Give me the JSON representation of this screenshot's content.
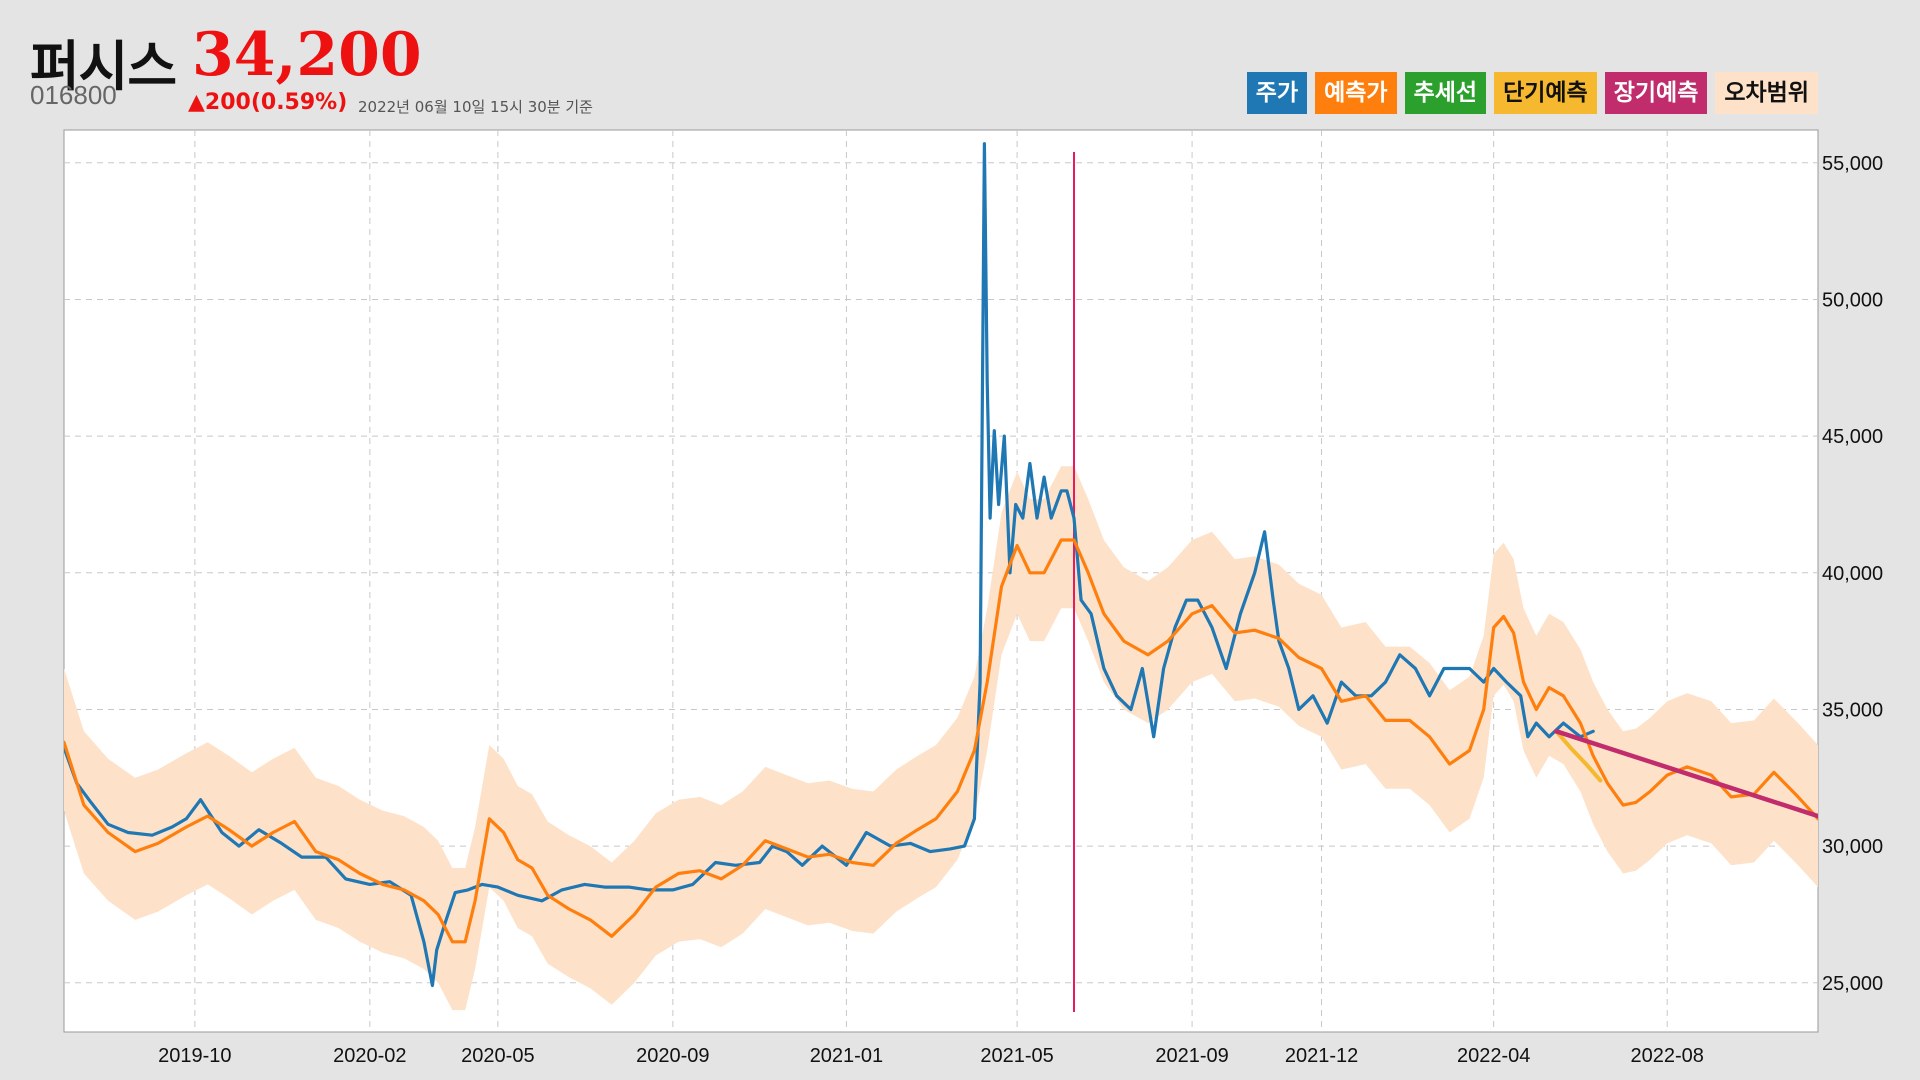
{
  "header": {
    "name": "퍼시스",
    "price": "34,200",
    "code": "016800",
    "change": "▲200(0.59%)",
    "time": "2022년 06월 10일 15시 30분 기준"
  },
  "legend": [
    {
      "label": "주가",
      "color": "#1f77b4",
      "text_color": "#ffffff"
    },
    {
      "label": "예측가",
      "color": "#ff7f0e",
      "text_color": "#ffffff"
    },
    {
      "label": "추세선",
      "color": "#2ca02c",
      "text_color": "#ffffff"
    },
    {
      "label": "단기예측",
      "color": "#f5b82e",
      "text_color": "#111111"
    },
    {
      "label": "장기예측",
      "color": "#c02c6c",
      "text_color": "#ffffff"
    },
    {
      "label": "오차범위",
      "color": "#fde2c9",
      "text_color": "#111111"
    }
  ],
  "chart_data": {
    "type": "line",
    "x_type": "date",
    "xlim": [
      "2019-07-01",
      "2022-11-15"
    ],
    "ylim": [
      23200,
      56200
    ],
    "y_ticks": [
      25000,
      30000,
      35000,
      40000,
      45000,
      50000,
      55000
    ],
    "y_tick_labels": [
      "25,000",
      "30,000",
      "35,000",
      "40,000",
      "45,000",
      "50,000",
      "55,000"
    ],
    "x_ticks": [
      "2019-10-01",
      "2020-02-01",
      "2020-05-01",
      "2020-09-01",
      "2021-01-01",
      "2021-05-01",
      "2021-09-01",
      "2021-12-01",
      "2022-04-01",
      "2022-08-01"
    ],
    "x_tick_labels": [
      "2019-10",
      "2020-02",
      "2020-05",
      "2020-09",
      "2021-01",
      "2021-05",
      "2021-09",
      "2021-12",
      "2022-04",
      "2022-08"
    ],
    "grid": true,
    "y_axis_side": "right",
    "marker_date": "2021-06-10",
    "series": [
      {
        "name": "주가",
        "color": "#1f77b4",
        "x": [
          "2019-07-01",
          "2019-07-10",
          "2019-07-20",
          "2019-08-01",
          "2019-08-15",
          "2019-09-01",
          "2019-09-15",
          "2019-09-25",
          "2019-10-05",
          "2019-10-20",
          "2019-11-01",
          "2019-11-15",
          "2019-12-01",
          "2019-12-15",
          "2020-01-01",
          "2020-01-15",
          "2020-02-01",
          "2020-02-15",
          "2020-03-01",
          "2020-03-10",
          "2020-03-16",
          "2020-03-19",
          "2020-03-25",
          "2020-04-01",
          "2020-04-10",
          "2020-04-20",
          "2020-05-01",
          "2020-05-15",
          "2020-06-01",
          "2020-06-15",
          "2020-07-01",
          "2020-07-15",
          "2020-08-01",
          "2020-08-15",
          "2020-09-01",
          "2020-09-15",
          "2020-10-01",
          "2020-10-15",
          "2020-11-01",
          "2020-11-10",
          "2020-11-20",
          "2020-12-01",
          "2020-12-15",
          "2021-01-01",
          "2021-01-15",
          "2021-02-01",
          "2021-02-15",
          "2021-03-01",
          "2021-03-15",
          "2021-03-25",
          "2021-04-01",
          "2021-04-05",
          "2021-04-08",
          "2021-04-10",
          "2021-04-12",
          "2021-04-15",
          "2021-04-18",
          "2021-04-22",
          "2021-04-26",
          "2021-04-30",
          "2021-05-05",
          "2021-05-10",
          "2021-05-15",
          "2021-05-20",
          "2021-05-25",
          "2021-06-01",
          "2021-06-05",
          "2021-06-10",
          "2021-06-15",
          "2021-06-22",
          "2021-07-01",
          "2021-07-10",
          "2021-07-20",
          "2021-07-28",
          "2021-08-05",
          "2021-08-12",
          "2021-08-20",
          "2021-08-28",
          "2021-09-05",
          "2021-09-15",
          "2021-09-25",
          "2021-10-05",
          "2021-10-15",
          "2021-10-22",
          "2021-10-28",
          "2021-11-01",
          "2021-11-08",
          "2021-11-15",
          "2021-11-25",
          "2021-12-05",
          "2021-12-15",
          "2021-12-25",
          "2022-01-05",
          "2022-01-15",
          "2022-01-25",
          "2022-02-05",
          "2022-02-15",
          "2022-02-25",
          "2022-03-05",
          "2022-03-15",
          "2022-03-25",
          "2022-04-01",
          "2022-04-10",
          "2022-04-20",
          "2022-04-25",
          "2022-05-01",
          "2022-05-10",
          "2022-05-20",
          "2022-06-01",
          "2022-06-10"
        ],
        "y": [
          33600,
          32300,
          31600,
          30800,
          30500,
          30400,
          30700,
          31000,
          31700,
          30500,
          30000,
          30600,
          30100,
          29600,
          29600,
          28800,
          28600,
          28700,
          28200,
          26500,
          24900,
          26200,
          27200,
          28300,
          28400,
          28600,
          28500,
          28200,
          28000,
          28400,
          28600,
          28500,
          28500,
          28400,
          28400,
          28600,
          29400,
          29300,
          29400,
          30000,
          29800,
          29300,
          30000,
          29300,
          30500,
          30000,
          30100,
          29800,
          29900,
          30000,
          31000,
          36000,
          55700,
          47000,
          42000,
          45200,
          42500,
          45000,
          40000,
          42500,
          42000,
          44000,
          42000,
          43500,
          42000,
          43000,
          43000,
          42000,
          39000,
          38500,
          36500,
          35500,
          35000,
          36500,
          34000,
          36500,
          38000,
          39000,
          39000,
          38000,
          36500,
          38500,
          40000,
          41500,
          39000,
          37500,
          36500,
          35000,
          35500,
          34500,
          36000,
          35500,
          35500,
          36000,
          37000,
          36500,
          35500,
          36500,
          36500,
          36500,
          36000,
          36500,
          36000,
          35500,
          34000,
          34500,
          34000,
          34500,
          34000,
          34200
        ]
      },
      {
        "name": "예측가",
        "color": "#ff7f0e",
        "x": [
          "2019-07-01",
          "2019-07-15",
          "2019-08-01",
          "2019-08-20",
          "2019-09-05",
          "2019-09-25",
          "2019-10-10",
          "2019-10-25",
          "2019-11-10",
          "2019-11-25",
          "2019-12-10",
          "2019-12-25",
          "2020-01-10",
          "2020-01-25",
          "2020-02-10",
          "2020-02-25",
          "2020-03-10",
          "2020-03-20",
          "2020-03-30",
          "2020-04-08",
          "2020-04-15",
          "2020-04-25",
          "2020-05-05",
          "2020-05-15",
          "2020-05-25",
          "2020-06-05",
          "2020-06-20",
          "2020-07-05",
          "2020-07-20",
          "2020-08-05",
          "2020-08-20",
          "2020-09-05",
          "2020-09-20",
          "2020-10-05",
          "2020-10-20",
          "2020-11-05",
          "2020-11-20",
          "2020-12-05",
          "2020-12-20",
          "2021-01-05",
          "2021-01-20",
          "2021-02-05",
          "2021-02-20",
          "2021-03-05",
          "2021-03-20",
          "2021-04-01",
          "2021-04-10",
          "2021-04-20",
          "2021-05-01",
          "2021-05-10",
          "2021-05-20",
          "2021-06-01",
          "2021-06-10",
          "2021-06-20",
          "2021-07-01",
          "2021-07-15",
          "2021-08-01",
          "2021-08-15",
          "2021-09-01",
          "2021-09-15",
          "2021-10-01",
          "2021-10-15",
          "2021-11-01",
          "2021-11-15",
          "2021-12-01",
          "2021-12-15",
          "2022-01-01",
          "2022-01-15",
          "2022-02-01",
          "2022-02-15",
          "2022-03-01",
          "2022-03-15",
          "2022-03-25",
          "2022-04-01",
          "2022-04-08",
          "2022-04-15",
          "2022-04-22",
          "2022-05-01",
          "2022-05-10",
          "2022-05-20",
          "2022-06-01",
          "2022-06-10",
          "2022-06-20",
          "2022-07-01",
          "2022-07-10",
          "2022-07-20",
          "2022-08-01",
          "2022-08-15",
          "2022-09-01",
          "2022-09-15",
          "2022-10-01",
          "2022-10-15",
          "2022-11-01",
          "2022-11-15"
        ],
        "y": [
          33800,
          31500,
          30500,
          29800,
          30100,
          30700,
          31100,
          30600,
          30000,
          30500,
          30900,
          29800,
          29500,
          29000,
          28600,
          28400,
          28000,
          27500,
          26500,
          26500,
          28000,
          31000,
          30500,
          29500,
          29200,
          28200,
          27700,
          27300,
          26700,
          27500,
          28500,
          29000,
          29100,
          28800,
          29300,
          30200,
          29900,
          29600,
          29700,
          29400,
          29300,
          30100,
          30600,
          31000,
          32000,
          33500,
          36000,
          39500,
          41000,
          40000,
          40000,
          41200,
          41200,
          40000,
          38500,
          37500,
          37000,
          37500,
          38500,
          38800,
          37800,
          37900,
          37600,
          36900,
          36500,
          35300,
          35500,
          34600,
          34600,
          34000,
          33000,
          33500,
          35000,
          38000,
          38400,
          37800,
          36000,
          35000,
          35800,
          35500,
          34500,
          33300,
          32300,
          31500,
          31600,
          32000,
          32600,
          32900,
          32600,
          31800,
          31900,
          32700,
          31800,
          31000
        ]
      },
      {
        "name": "단기예측",
        "color": "#f5b82e",
        "x": [
          "2022-05-15",
          "2022-05-25",
          "2022-06-05",
          "2022-06-15"
        ],
        "y": [
          34200,
          33600,
          33000,
          32400
        ]
      },
      {
        "name": "장기예측",
        "color": "#c02c6c",
        "x": [
          "2022-05-15",
          "2022-11-15"
        ],
        "y": [
          34200,
          31100
        ]
      }
    ],
    "error_band": {
      "name": "오차범위",
      "color": "#fde2c9",
      "offset_upper": 2700,
      "offset_lower": 2500
    }
  }
}
